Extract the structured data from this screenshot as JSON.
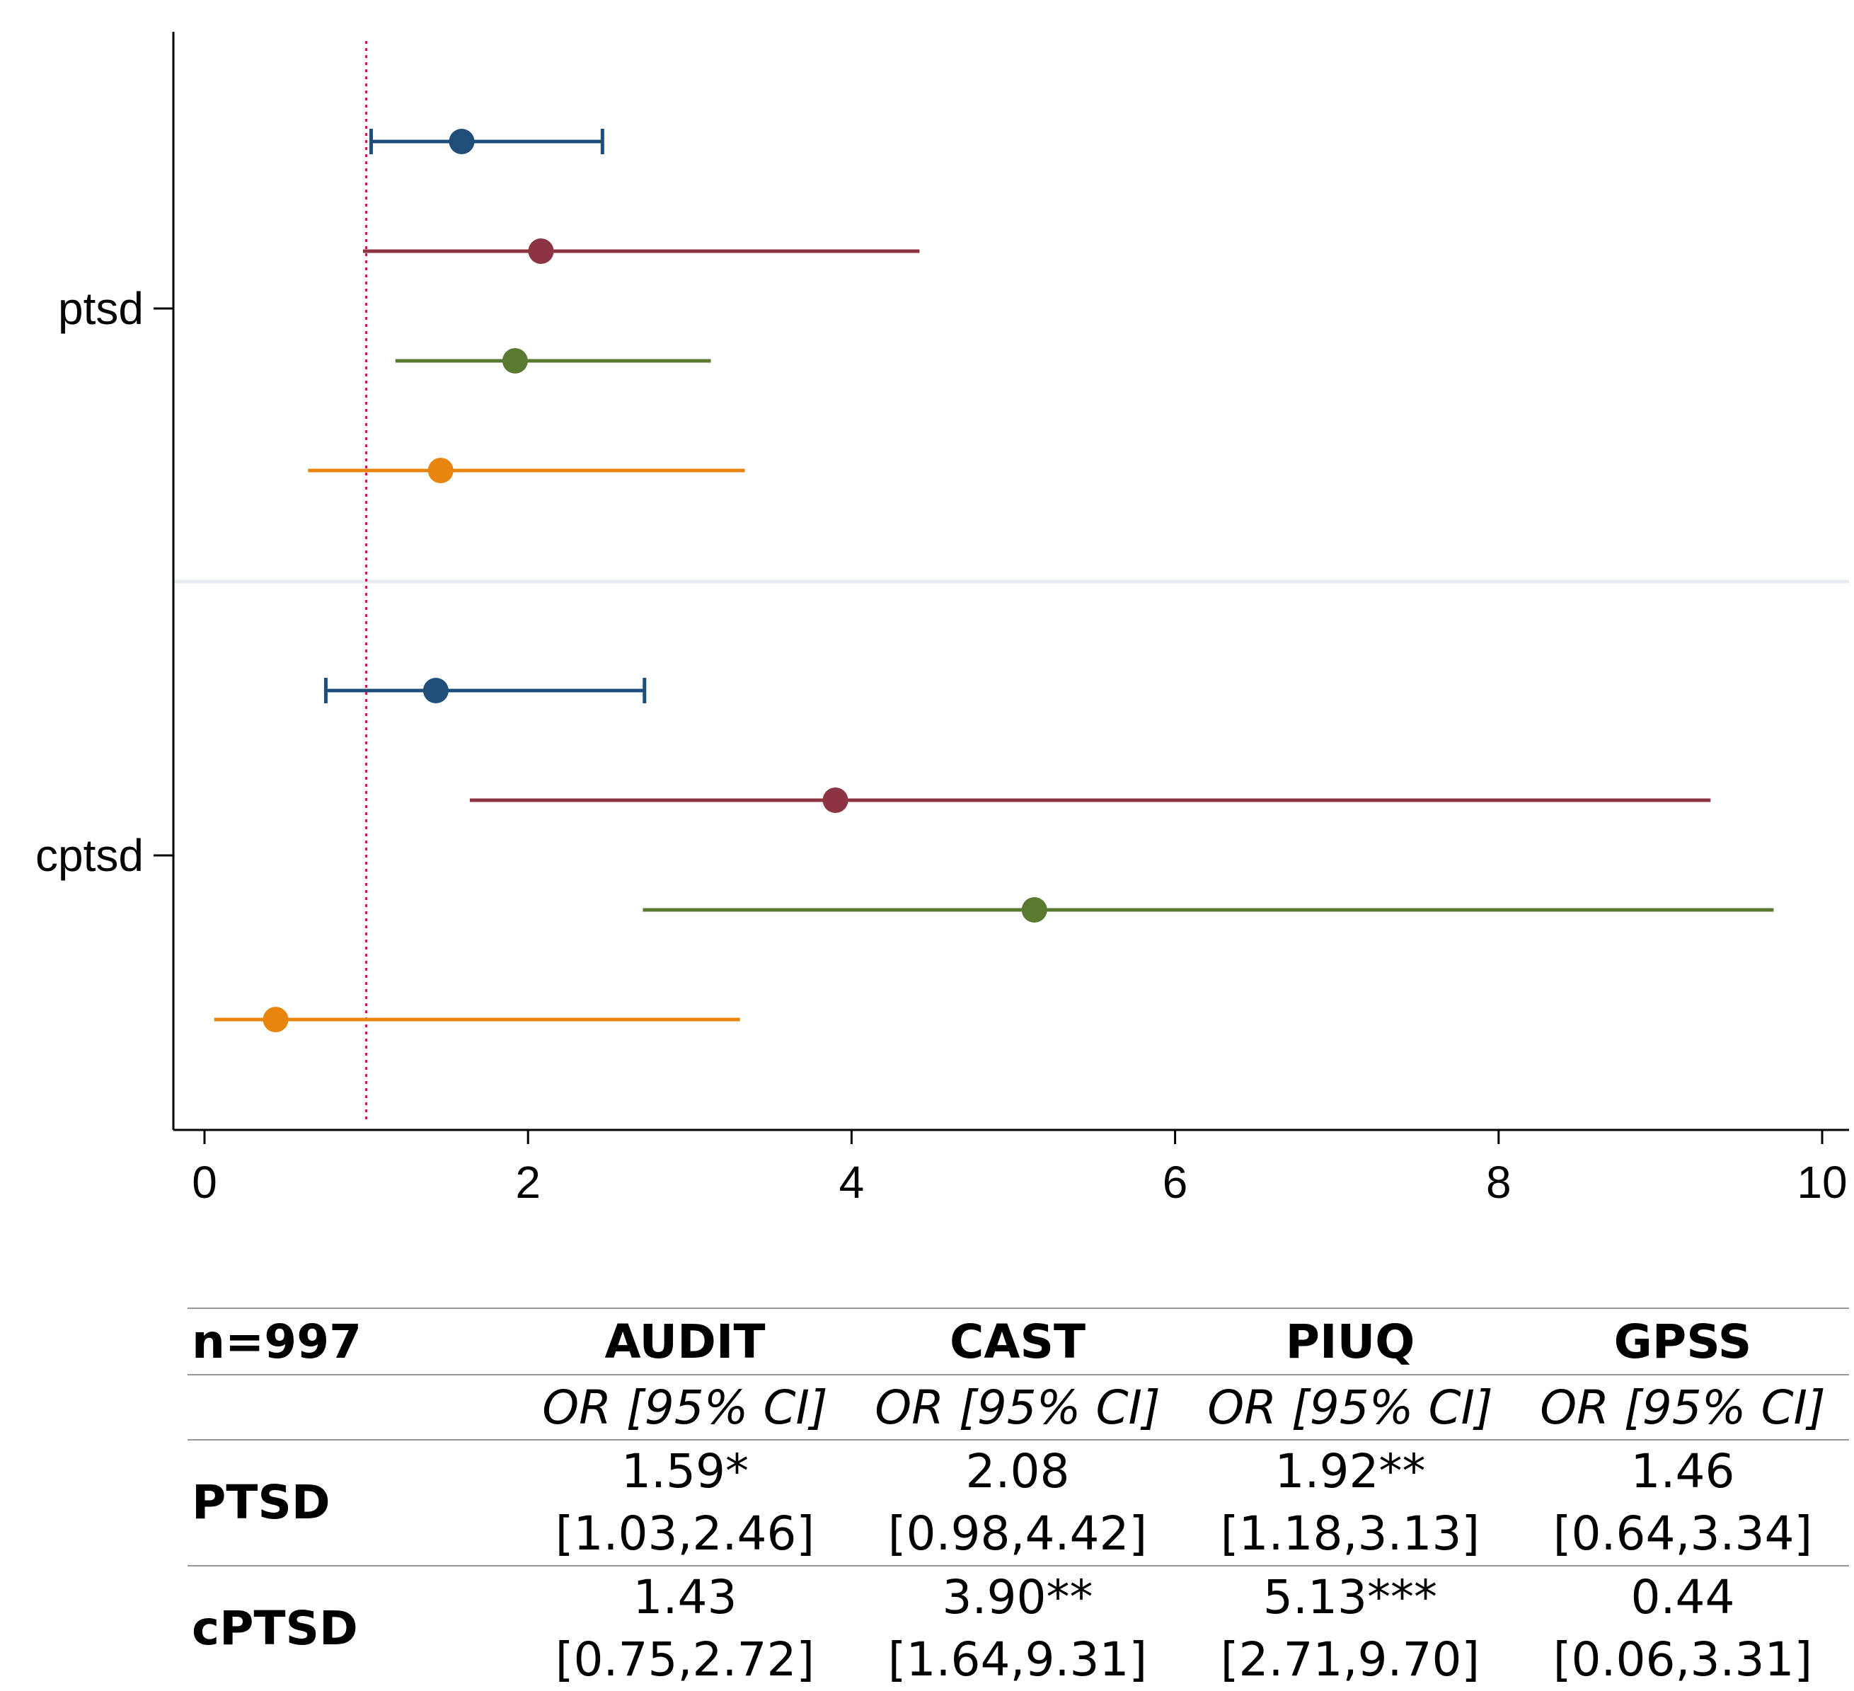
{
  "chart_data": {
    "type": "scatter",
    "subtype": "forest-plot (odds ratios with 95% CI)",
    "xlim": [
      0,
      10
    ],
    "xticks": [
      0,
      2,
      4,
      6,
      8,
      10
    ],
    "reference_line": 1,
    "grid": false,
    "categories": [
      "ptsd",
      "cptsd"
    ],
    "series": [
      {
        "name": "AUDIT",
        "color": "#1f4e79",
        "points": [
          {
            "group": "ptsd",
            "or": 1.59,
            "lo": 1.03,
            "hi": 2.46
          },
          {
            "group": "cptsd",
            "or": 1.43,
            "lo": 0.75,
            "hi": 2.72
          }
        ]
      },
      {
        "name": "CAST",
        "color": "#8e3341",
        "points": [
          {
            "group": "ptsd",
            "or": 2.08,
            "lo": 0.98,
            "hi": 4.42
          },
          {
            "group": "cptsd",
            "or": 3.9,
            "lo": 1.64,
            "hi": 9.31
          }
        ]
      },
      {
        "name": "PIUQ",
        "color": "#5a7a32",
        "points": [
          {
            "group": "ptsd",
            "or": 1.92,
            "lo": 1.18,
            "hi": 3.13
          },
          {
            "group": "cptsd",
            "or": 5.13,
            "lo": 2.71,
            "hi": 9.7
          }
        ]
      },
      {
        "name": "GPSS",
        "color": "#e8850f",
        "points": [
          {
            "group": "ptsd",
            "or": 1.46,
            "lo": 0.64,
            "hi": 3.34
          },
          {
            "group": "cptsd",
            "or": 0.44,
            "lo": 0.06,
            "hi": 3.31
          }
        ]
      }
    ]
  },
  "table": {
    "n_label": "n=997",
    "columns": [
      "AUDIT",
      "CAST",
      "PIUQ",
      "GPSS"
    ],
    "subheader": "OR [95% CI]",
    "rows": [
      {
        "label": "PTSD",
        "or": [
          "1.59*",
          "2.08",
          "1.92**",
          "1.46"
        ],
        "ci": [
          "[1.03,2.46]",
          "[0.98,4.42]",
          "[1.18,3.13]",
          "[0.64,3.34]"
        ]
      },
      {
        "label": "cPTSD",
        "or": [
          "1.43",
          "3.90**",
          "5.13***",
          "0.44"
        ],
        "ci": [
          "[0.75,2.72]",
          "[1.64,9.31]",
          "[2.71,9.70]",
          "[0.06,3.31]"
        ]
      }
    ]
  }
}
